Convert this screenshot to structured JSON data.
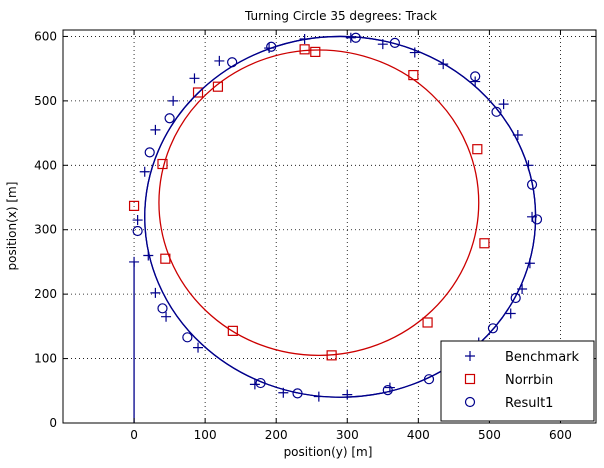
{
  "chart_data": {
    "type": "line",
    "title": "Turning Circle 35 degrees: Track",
    "xlabel": "position(y) [m]",
    "ylabel": "position(x) [m]",
    "xlim": [
      -100,
      650
    ],
    "ylim": [
      0,
      610
    ],
    "xticks": [
      0,
      100,
      200,
      300,
      400,
      500,
      600
    ],
    "yticks": [
      0,
      100,
      200,
      300,
      400,
      500,
      600
    ],
    "grid": true,
    "legend_position": "bottom-right",
    "series": [
      {
        "name": "Benchmark",
        "color": "#00008b",
        "marker": "plus",
        "approach_line": [
          [
            0,
            0
          ],
          [
            0,
            250
          ]
        ],
        "circle": {
          "cx": 290,
          "cy": 320,
          "rx": 275,
          "ry": 280
        },
        "points": [
          [
            0,
            250
          ],
          [
            5,
            315
          ],
          [
            15,
            390
          ],
          [
            30,
            455
          ],
          [
            55,
            500
          ],
          [
            85,
            535
          ],
          [
            120,
            562
          ],
          [
            190,
            582
          ],
          [
            240,
            596
          ],
          [
            305,
            598
          ],
          [
            350,
            588
          ],
          [
            395,
            575
          ],
          [
            435,
            557
          ],
          [
            480,
            530
          ],
          [
            520,
            495
          ],
          [
            540,
            447
          ],
          [
            555,
            400
          ],
          [
            560,
            320
          ],
          [
            557,
            248
          ],
          [
            546,
            208
          ],
          [
            530,
            170
          ],
          [
            485,
            125
          ],
          [
            460,
            100
          ],
          [
            440,
            85
          ],
          [
            360,
            55
          ],
          [
            300,
            44
          ],
          [
            260,
            41
          ],
          [
            210,
            47
          ],
          [
            170,
            60
          ],
          [
            90,
            117
          ],
          [
            45,
            165
          ],
          [
            30,
            202
          ],
          [
            20,
            260
          ]
        ]
      },
      {
        "name": "Norrbin",
        "color": "#cc0000",
        "marker": "square",
        "circle": {
          "cx": 260,
          "cy": 342,
          "rx": 225,
          "ry": 237
        },
        "points": [
          [
            0,
            337
          ],
          [
            40,
            402
          ],
          [
            90,
            513
          ],
          [
            118,
            522
          ],
          [
            240,
            580
          ],
          [
            255,
            576
          ],
          [
            393,
            540
          ],
          [
            483,
            425
          ],
          [
            493,
            279
          ],
          [
            413,
            156
          ],
          [
            278,
            105
          ],
          [
            139,
            143
          ],
          [
            44,
            255
          ]
        ]
      },
      {
        "name": "Result1",
        "color": "#00008b",
        "marker": "circle",
        "circle": {
          "cx": 290,
          "cy": 320,
          "rx": 275,
          "ry": 280
        },
        "points": [
          [
            5,
            298
          ],
          [
            22,
            420
          ],
          [
            50,
            473
          ],
          [
            138,
            560
          ],
          [
            193,
            584
          ],
          [
            312,
            598
          ],
          [
            367,
            590
          ],
          [
            480,
            538
          ],
          [
            510,
            483
          ],
          [
            560,
            370
          ],
          [
            567,
            316
          ],
          [
            537,
            194
          ],
          [
            505,
            147
          ],
          [
            415,
            68
          ],
          [
            357,
            51
          ],
          [
            230,
            46
          ],
          [
            178,
            62
          ],
          [
            75,
            133
          ],
          [
            40,
            178
          ]
        ]
      }
    ]
  }
}
